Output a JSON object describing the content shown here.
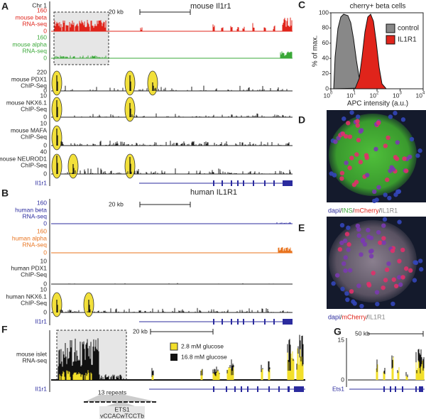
{
  "panel_a": {
    "label": "A",
    "chromosome": "Chr 1",
    "gene_title": "mouse Il1r1",
    "scale": "20 kb",
    "tracks": [
      {
        "max": 160,
        "line1": "mouse beta",
        "line2": "RNA-seq",
        "min": 0
      },
      {
        "max": 160,
        "line1": "mouse alpha",
        "line2": "RNA-seq",
        "min": 0
      },
      {
        "max": 220,
        "line1": "mouse PDX1",
        "line2": "ChIP-Seq",
        "min": 0
      },
      {
        "max": 10,
        "line1": "mouse NKX6.1",
        "line2": "ChIP-Seq",
        "min": 0
      },
      {
        "max": 10,
        "line1": "mouse MAFA",
        "line2": "ChIP-Seq",
        "min": 0
      },
      {
        "max": 40,
        "line1": "mouse NEUROD1",
        "line2": "ChIP-Seq",
        "min": 0
      }
    ],
    "gene": "Il1r1"
  },
  "panel_b": {
    "label": "B",
    "gene_title": "human IL1R1",
    "scale": "20 kb",
    "tracks": [
      {
        "max": 160,
        "line1": "human beta",
        "line2": "RNA-seq",
        "min": 0
      },
      {
        "max": 160,
        "line1": "human alpha",
        "line2": "RNA-seq",
        "min": 0
      },
      {
        "max": 10,
        "line1": "human PDX1",
        "line2": "ChIP-Seq",
        "min": 0
      },
      {
        "max": 10,
        "line1": "human NKX6.1",
        "line2": "ChIP-Seq",
        "min": 0
      }
    ],
    "gene": "Il1r1"
  },
  "panel_c": {
    "label": "C",
    "title": "cherry+ beta cells",
    "y_label": "% of max.",
    "x_label": "APC intensity (a.u.)",
    "yticks": [
      0,
      20,
      40,
      60,
      80,
      100
    ],
    "xticks": [
      {
        "base": "10",
        "exp": "0"
      },
      {
        "base": "10",
        "exp": "1"
      },
      {
        "base": "10",
        "exp": "2"
      },
      {
        "base": "10",
        "exp": "3"
      },
      {
        "base": "10",
        "exp": "4"
      }
    ],
    "legend": [
      "control",
      "IL1R1"
    ]
  },
  "panel_d": {
    "label": "D",
    "caption": [
      "dapi",
      " / ",
      "INS",
      " / ",
      "mCherry",
      " / ",
      "IL1R1"
    ]
  },
  "panel_e": {
    "label": "E",
    "caption": [
      "dapi",
      " / ",
      "mCherry",
      " / ",
      "IL1R1"
    ]
  },
  "panel_f": {
    "label": "F",
    "y_label": [
      "mouse islet",
      "RNA-seq"
    ],
    "scale": "20 kb",
    "legend": [
      "2.8 mM glucose",
      "16.8 mM glucose"
    ],
    "gene": "Il1r1",
    "repeats": "13 repeats",
    "motif_name": "ETS1",
    "motif": "vCCACwTCCTb"
  },
  "panel_g": {
    "label": "G",
    "scale": "50 kb",
    "ymax": 15,
    "ymin": 0,
    "gene": "Ets1"
  }
}
